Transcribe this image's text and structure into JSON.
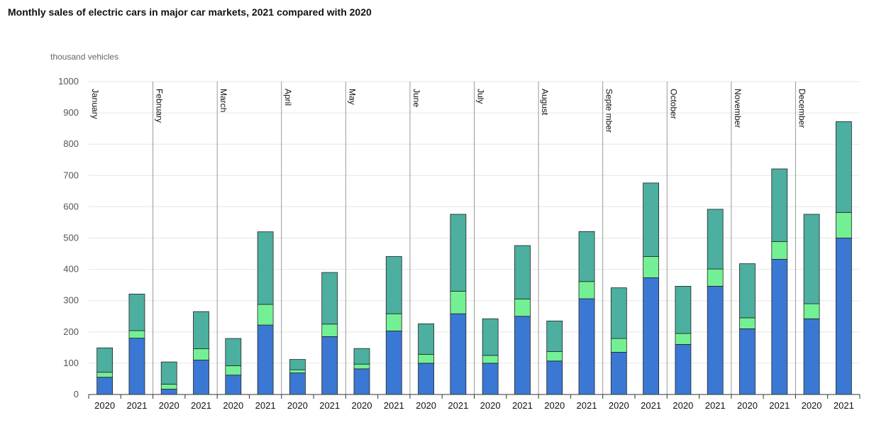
{
  "chart_data": {
    "type": "bar",
    "stacked": true,
    "title": "Monthly sales of electric cars in major car markets, 2021 compared with 2020",
    "ylabel": "thousand vehicles",
    "ylim": [
      0,
      1000
    ],
    "yticks": [
      0,
      100,
      200,
      300,
      400,
      500,
      600,
      700,
      800,
      900,
      1000
    ],
    "months": [
      "January",
      "February",
      "March",
      "April",
      "May",
      "June",
      "July",
      "August",
      "Septe mber",
      "October",
      "November",
      "December"
    ],
    "years": [
      "2020",
      "2021"
    ],
    "categories": [
      "2020",
      "2021",
      "2020",
      "2021",
      "2020",
      "2021",
      "2020",
      "2021",
      "2020",
      "2021",
      "2020",
      "2021",
      "2020",
      "2021",
      "2020",
      "2021",
      "2020",
      "2021",
      "2020",
      "2021",
      "2020",
      "2021",
      "2020",
      "2021"
    ],
    "colors": {
      "series1": "#3a78d4",
      "series2": "#74f094",
      "series3": "#4caf9f",
      "outline": "#222222",
      "grid": "#e6e6e6",
      "separator": "#999999"
    },
    "series": [
      {
        "name": "series1",
        "values": [
          55,
          180,
          17,
          110,
          62,
          222,
          69,
          185,
          82,
          203,
          100,
          258,
          100,
          250,
          107,
          306,
          135,
          373,
          160,
          346,
          210,
          432,
          242,
          500
        ]
      },
      {
        "name": "series2",
        "values": [
          16,
          24,
          16,
          36,
          30,
          66,
          10,
          40,
          15,
          55,
          28,
          72,
          25,
          55,
          30,
          55,
          44,
          68,
          35,
          55,
          35,
          57,
          48,
          82
        ]
      },
      {
        "name": "series3",
        "values": [
          78,
          117,
          71,
          119,
          87,
          232,
          33,
          165,
          50,
          183,
          98,
          246,
          117,
          171,
          98,
          160,
          162,
          235,
          151,
          191,
          173,
          232,
          286,
          290
        ]
      }
    ]
  }
}
